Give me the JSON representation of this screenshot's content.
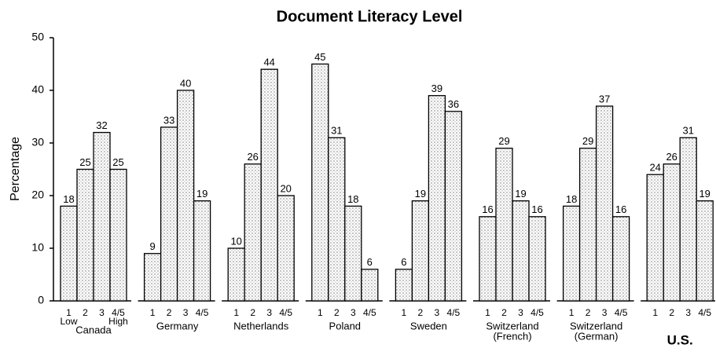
{
  "chart_data": {
    "type": "bar",
    "title": "Document Literacy Level",
    "y_label": "Percentage",
    "ylim": [
      0,
      50
    ],
    "yticks": [
      0,
      10,
      20,
      30,
      40,
      50
    ],
    "color": "#d6d6d6",
    "levels": [
      "1",
      "2",
      "3",
      "4/5"
    ],
    "scale_labels": [
      "Low",
      "High"
    ],
    "groups": [
      {
        "name": [
          "Canada"
        ],
        "values": [
          18,
          25,
          32,
          25
        ]
      },
      {
        "name": [
          "Germany"
        ],
        "values": [
          9,
          33,
          40,
          19
        ]
      },
      {
        "name": [
          "Netherlands"
        ],
        "values": [
          10,
          26,
          44,
          20
        ]
      },
      {
        "name": [
          "Poland"
        ],
        "values": [
          45,
          31,
          18,
          6
        ]
      },
      {
        "name": [
          "Sweden"
        ],
        "values": [
          6,
          19,
          39,
          36
        ]
      },
      {
        "name": [
          "Switzerland",
          "(French)"
        ],
        "values": [
          16,
          29,
          19,
          16
        ]
      },
      {
        "name": [
          "Switzerland",
          "(German)"
        ],
        "values": [
          18,
          29,
          37,
          16
        ]
      },
      {
        "name": [
          "U.S."
        ],
        "values": [
          24,
          26,
          31,
          19
        ]
      }
    ]
  }
}
